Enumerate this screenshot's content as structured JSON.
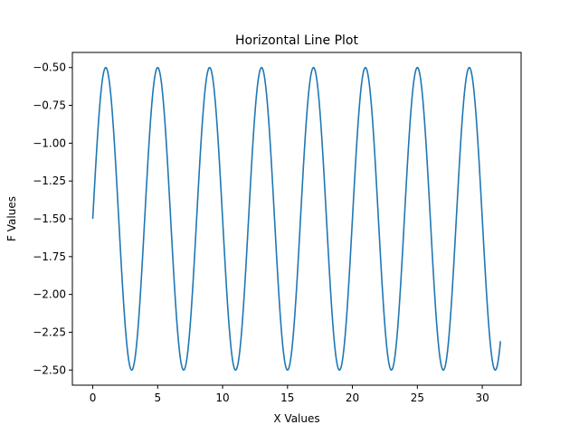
{
  "chart_data": {
    "type": "line",
    "title": "Horizontal Line Plot",
    "xlabel": "X Values",
    "ylabel": "F Values",
    "xlim": [
      -1.57,
      32.99
    ],
    "ylim": [
      -2.6,
      -0.4
    ],
    "grid": false,
    "x_ticks": [
      {
        "value": 0,
        "label": "0"
      },
      {
        "value": 5,
        "label": "5"
      },
      {
        "value": 10,
        "label": "10"
      },
      {
        "value": 15,
        "label": "15"
      },
      {
        "value": 20,
        "label": "20"
      },
      {
        "value": 25,
        "label": "25"
      },
      {
        "value": 30,
        "label": "30"
      }
    ],
    "y_ticks": [
      {
        "value": -0.5,
        "label": "−0.50"
      },
      {
        "value": -0.75,
        "label": "−0.75"
      },
      {
        "value": -1.0,
        "label": "−1.00"
      },
      {
        "value": -1.25,
        "label": "−1.25"
      },
      {
        "value": -1.5,
        "label": "−1.50"
      },
      {
        "value": -1.75,
        "label": "−1.75"
      },
      {
        "value": -2.0,
        "label": "−2.00"
      },
      {
        "value": -2.25,
        "label": "−2.25"
      },
      {
        "value": -2.5,
        "label": "−2.50"
      }
    ],
    "series": [
      {
        "color": "#1f77b4",
        "function": "F = sin(x * pi/2) - 1.5",
        "x_range": [
          0,
          31.4
        ]
      }
    ]
  }
}
